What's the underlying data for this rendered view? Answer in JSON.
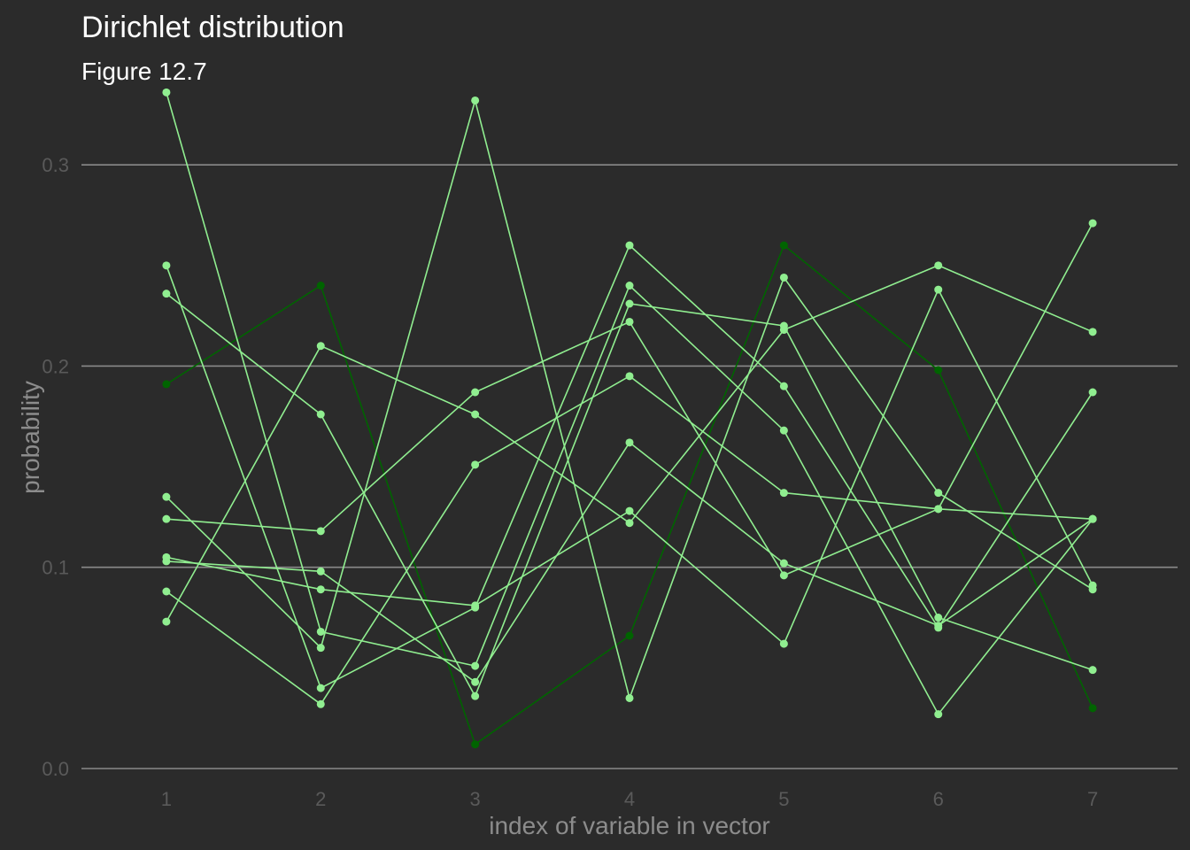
{
  "chart_data": {
    "type": "line",
    "title": "Dirichlet distribution",
    "subtitle": "Figure 12.7",
    "xlabel": "index of variable in vector",
    "ylabel": "probability",
    "x": [
      1,
      2,
      3,
      4,
      5,
      6,
      7
    ],
    "x_ticks": [
      "1",
      "2",
      "3",
      "4",
      "5",
      "6",
      "7"
    ],
    "y_ticks": [
      "0.0",
      "0.1",
      "0.2",
      "0.3"
    ],
    "xlim": [
      0.45,
      7.55
    ],
    "ylim": [
      0,
      0.33
    ],
    "grid": "horizontal",
    "legend": "none",
    "colors": {
      "highlight": "#006400",
      "others": "#90ee90",
      "background": "#2b2b2b",
      "grid": "#8a8a8a"
    },
    "series": [
      {
        "highlight": true,
        "values": [
          0.191,
          0.24,
          0.012,
          0.066,
          0.26,
          0.198,
          0.03
        ]
      },
      {
        "highlight": false,
        "values": [
          0.336,
          0.068,
          0.051,
          0.24,
          0.168,
          0.027,
          0.124
        ]
      },
      {
        "highlight": false,
        "values": [
          0.25,
          0.04,
          0.08,
          0.26,
          0.19,
          0.07,
          0.187
        ]
      },
      {
        "highlight": false,
        "values": [
          0.236,
          0.176,
          0.036,
          0.231,
          0.22,
          0.075,
          0.049
        ]
      },
      {
        "highlight": false,
        "values": [
          0.135,
          0.06,
          0.332,
          0.035,
          0.244,
          0.137,
          0.089
        ]
      },
      {
        "highlight": false,
        "values": [
          0.124,
          0.118,
          0.187,
          0.222,
          0.096,
          0.129,
          0.271
        ]
      },
      {
        "highlight": false,
        "values": [
          0.105,
          0.089,
          0.081,
          0.128,
          0.062,
          0.238,
          0.091
        ]
      },
      {
        "highlight": false,
        "values": [
          0.103,
          0.098,
          0.043,
          0.162,
          0.102,
          0.071,
          0.124
        ]
      },
      {
        "highlight": false,
        "values": [
          0.088,
          0.032,
          0.151,
          0.195,
          0.137,
          0.129,
          0.124
        ]
      },
      {
        "highlight": false,
        "values": [
          0.073,
          0.21,
          0.176,
          0.122,
          0.218,
          0.25,
          0.217
        ]
      }
    ]
  }
}
